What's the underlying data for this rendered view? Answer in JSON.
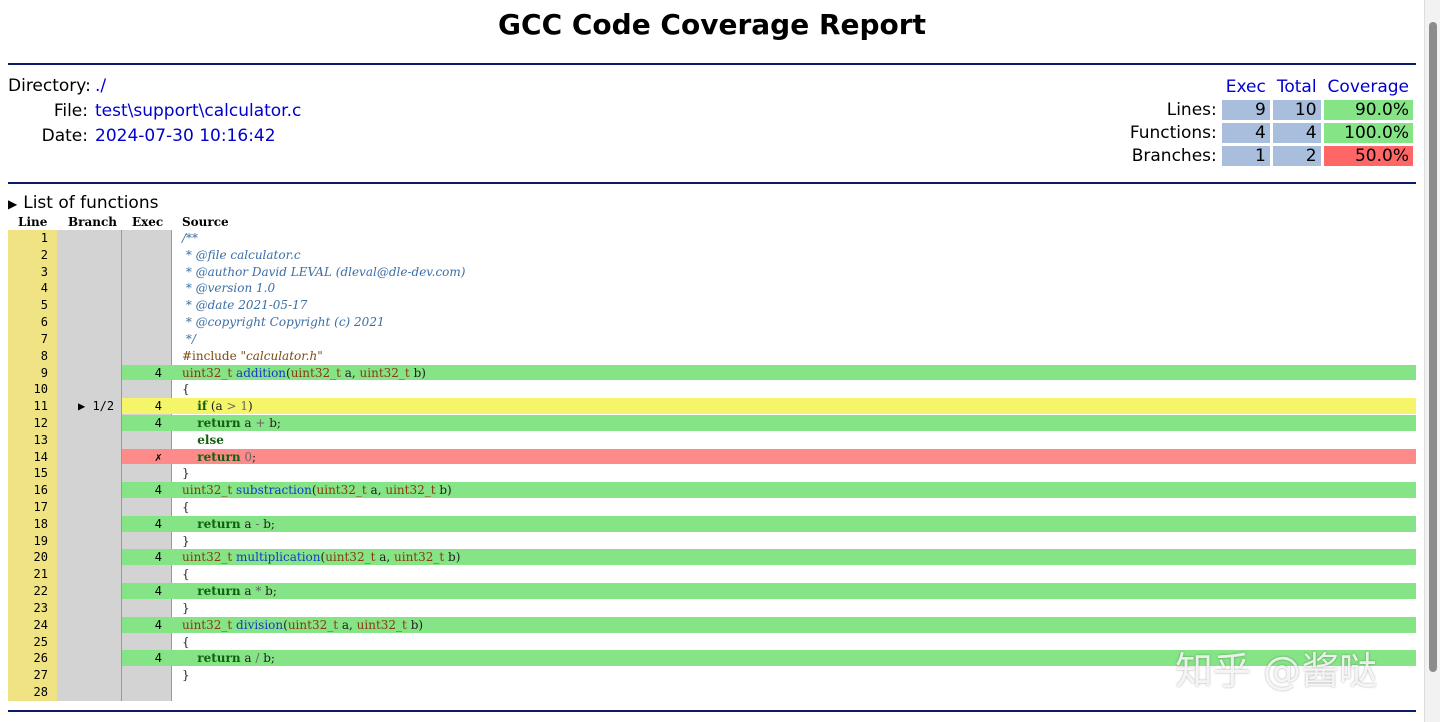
{
  "header": {
    "title": "GCC Code Coverage Report",
    "directory_label": "Directory:",
    "directory": "./",
    "file_label": "File:",
    "file": "test\\support\\calculator.c",
    "date_label": "Date:",
    "date": "2024-07-30 10:16:42"
  },
  "summary": {
    "col_exec": "Exec",
    "col_total": "Total",
    "col_coverage": "Coverage",
    "rows": [
      {
        "label": "Lines:",
        "exec": "9",
        "total": "10",
        "coverage": "90.0%",
        "status_color": "#85e485"
      },
      {
        "label": "Functions:",
        "exec": "4",
        "total": "4",
        "coverage": "100.0%",
        "status_color": "#85e485"
      },
      {
        "label": "Branches:",
        "exec": "1",
        "total": "2",
        "coverage": "50.0%",
        "status_color": "#ff6666"
      }
    ]
  },
  "functions_toggle": "List of functions",
  "source_headers": {
    "line": "Line",
    "branch": "Branch",
    "exec": "Exec",
    "source": "Source"
  },
  "source_lines": [
    {
      "n": "1",
      "branch": "",
      "exec": "",
      "status": "",
      "tokens": [
        [
          "comment",
          "/**"
        ]
      ]
    },
    {
      "n": "2",
      "branch": "",
      "exec": "",
      "status": "",
      "tokens": [
        [
          "comment",
          " * @file calculator.c"
        ]
      ]
    },
    {
      "n": "3",
      "branch": "",
      "exec": "",
      "status": "",
      "tokens": [
        [
          "comment",
          " * @author David LEVAL (dleval@dle-dev.com)"
        ]
      ]
    },
    {
      "n": "4",
      "branch": "",
      "exec": "",
      "status": "",
      "tokens": [
        [
          "comment",
          " * @version 1.0"
        ]
      ]
    },
    {
      "n": "5",
      "branch": "",
      "exec": "",
      "status": "",
      "tokens": [
        [
          "comment",
          " * @date 2021-05-17"
        ]
      ]
    },
    {
      "n": "6",
      "branch": "",
      "exec": "",
      "status": "",
      "tokens": [
        [
          "comment",
          " * @copyright Copyright (c) 2021"
        ]
      ]
    },
    {
      "n": "7",
      "branch": "",
      "exec": "",
      "status": "",
      "tokens": [
        [
          "comment",
          " */"
        ]
      ]
    },
    {
      "n": "8",
      "branch": "",
      "exec": "",
      "status": "",
      "tokens": [
        [
          "pre",
          "#include "
        ],
        [
          "str",
          "\"calculator.h\""
        ]
      ]
    },
    {
      "n": "9",
      "branch": "",
      "exec": "4",
      "status": "ok",
      "tokens": [
        [
          "type",
          "uint32_t"
        ],
        [
          "plain",
          " "
        ],
        [
          "func",
          "addition"
        ],
        [
          "plain",
          "("
        ],
        [
          "type",
          "uint32_t"
        ],
        [
          "plain",
          " a, "
        ],
        [
          "type",
          "uint32_t"
        ],
        [
          "plain",
          " b)"
        ]
      ]
    },
    {
      "n": "10",
      "branch": "",
      "exec": "",
      "status": "",
      "tokens": [
        [
          "plain",
          "{"
        ]
      ]
    },
    {
      "n": "11",
      "branch": "▶ 1/2",
      "exec": "4",
      "status": "partial",
      "tokens": [
        [
          "plain",
          "    "
        ],
        [
          "kw",
          "if"
        ],
        [
          "plain",
          " (a "
        ],
        [
          "num",
          ">"
        ],
        [
          "plain",
          " "
        ],
        [
          "num",
          "1"
        ],
        [
          "plain",
          ")"
        ]
      ]
    },
    {
      "n": "12",
      "branch": "",
      "exec": "4",
      "status": "ok",
      "tokens": [
        [
          "plain",
          "    "
        ],
        [
          "kw",
          "return"
        ],
        [
          "plain",
          " a "
        ],
        [
          "num",
          "+"
        ],
        [
          "plain",
          " b;"
        ]
      ]
    },
    {
      "n": "13",
      "branch": "",
      "exec": "",
      "status": "",
      "tokens": [
        [
          "plain",
          "    "
        ],
        [
          "kw",
          "else"
        ]
      ]
    },
    {
      "n": "14",
      "branch": "",
      "exec": "✗",
      "status": "miss",
      "tokens": [
        [
          "plain",
          "    "
        ],
        [
          "kw",
          "return"
        ],
        [
          "plain",
          " "
        ],
        [
          "num",
          "0"
        ],
        [
          "plain",
          ";"
        ]
      ]
    },
    {
      "n": "15",
      "branch": "",
      "exec": "",
      "status": "",
      "tokens": [
        [
          "plain",
          "}"
        ]
      ]
    },
    {
      "n": "16",
      "branch": "",
      "exec": "4",
      "status": "ok",
      "tokens": [
        [
          "type",
          "uint32_t"
        ],
        [
          "plain",
          " "
        ],
        [
          "func",
          "substraction"
        ],
        [
          "plain",
          "("
        ],
        [
          "type",
          "uint32_t"
        ],
        [
          "plain",
          " a, "
        ],
        [
          "type",
          "uint32_t"
        ],
        [
          "plain",
          " b)"
        ]
      ]
    },
    {
      "n": "17",
      "branch": "",
      "exec": "",
      "status": "",
      "tokens": [
        [
          "plain",
          "{"
        ]
      ]
    },
    {
      "n": "18",
      "branch": "",
      "exec": "4",
      "status": "ok",
      "tokens": [
        [
          "plain",
          "    "
        ],
        [
          "kw",
          "return"
        ],
        [
          "plain",
          " a "
        ],
        [
          "num",
          "-"
        ],
        [
          "plain",
          " b;"
        ]
      ]
    },
    {
      "n": "19",
      "branch": "",
      "exec": "",
      "status": "",
      "tokens": [
        [
          "plain",
          "}"
        ]
      ]
    },
    {
      "n": "20",
      "branch": "",
      "exec": "4",
      "status": "ok",
      "tokens": [
        [
          "type",
          "uint32_t"
        ],
        [
          "plain",
          " "
        ],
        [
          "func",
          "multiplication"
        ],
        [
          "plain",
          "("
        ],
        [
          "type",
          "uint32_t"
        ],
        [
          "plain",
          " a, "
        ],
        [
          "type",
          "uint32_t"
        ],
        [
          "plain",
          " b)"
        ]
      ]
    },
    {
      "n": "21",
      "branch": "",
      "exec": "",
      "status": "",
      "tokens": [
        [
          "plain",
          "{"
        ]
      ]
    },
    {
      "n": "22",
      "branch": "",
      "exec": "4",
      "status": "ok",
      "tokens": [
        [
          "plain",
          "    "
        ],
        [
          "kw",
          "return"
        ],
        [
          "plain",
          " a "
        ],
        [
          "num",
          "*"
        ],
        [
          "plain",
          " b;"
        ]
      ]
    },
    {
      "n": "23",
      "branch": "",
      "exec": "",
      "status": "",
      "tokens": [
        [
          "plain",
          "}"
        ]
      ]
    },
    {
      "n": "24",
      "branch": "",
      "exec": "4",
      "status": "ok",
      "tokens": [
        [
          "type",
          "uint32_t"
        ],
        [
          "plain",
          " "
        ],
        [
          "func",
          "division"
        ],
        [
          "plain",
          "("
        ],
        [
          "type",
          "uint32_t"
        ],
        [
          "plain",
          " a, "
        ],
        [
          "type",
          "uint32_t"
        ],
        [
          "plain",
          " b)"
        ]
      ]
    },
    {
      "n": "25",
      "branch": "",
      "exec": "",
      "status": "",
      "tokens": [
        [
          "plain",
          "{"
        ]
      ]
    },
    {
      "n": "26",
      "branch": "",
      "exec": "4",
      "status": "ok",
      "tokens": [
        [
          "plain",
          "    "
        ],
        [
          "kw",
          "return"
        ],
        [
          "plain",
          " a "
        ],
        [
          "num",
          "/"
        ],
        [
          "plain",
          " b;"
        ]
      ]
    },
    {
      "n": "27",
      "branch": "",
      "exec": "",
      "status": "",
      "tokens": [
        [
          "plain",
          "}"
        ]
      ]
    },
    {
      "n": "28",
      "branch": "",
      "exec": "",
      "status": "",
      "tokens": []
    }
  ],
  "watermark": "知乎 @酱哒"
}
